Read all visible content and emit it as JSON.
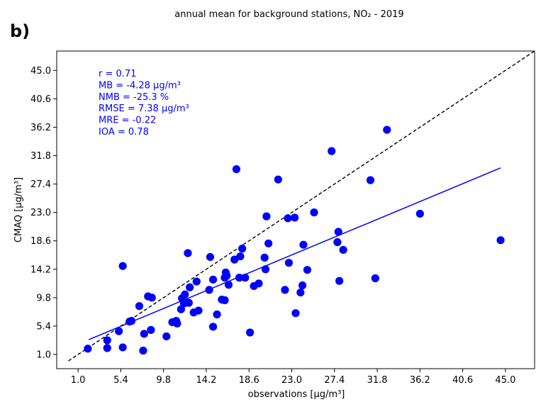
{
  "panel_label": "b)",
  "chart_data": {
    "type": "scatter",
    "title": "annual mean for background stations, NO₂ - 2019",
    "xlabel": "observations [μg/m³]",
    "ylabel": "CMAQ [μg/m³]",
    "xlim": [
      -1.2,
      48.0
    ],
    "ylim": [
      -1.2,
      48.0
    ],
    "xticks": [
      "1.0",
      "5.4",
      "9.8",
      "14.2",
      "18.6",
      "23.0",
      "27.4",
      "31.8",
      "36.2",
      "40.6",
      "45.0"
    ],
    "yticks": [
      "1.0",
      "5.4",
      "9.8",
      "14.2",
      "18.6",
      "23.0",
      "27.4",
      "31.8",
      "36.2",
      "40.6",
      "45.0"
    ],
    "tick_values": [
      1.0,
      5.4,
      9.8,
      14.2,
      18.6,
      23.0,
      27.4,
      31.8,
      36.2,
      40.6,
      45.0
    ],
    "grid": false,
    "point_color": "#0000ff",
    "identity_line": {
      "style": "dashed",
      "color": "#000000"
    },
    "regression_line": {
      "x": [
        2.1,
        44.5
      ],
      "y": [
        3.3,
        29.9
      ],
      "color": "#0000ff"
    },
    "stats": [
      "r = 0.71",
      "MB = -4.28 μg/m³",
      "NMB = -25.3 %",
      "RMSE = 7.38 μg/m³",
      "MRE = -0.22",
      "IOA = 0.78"
    ],
    "points": [
      [
        2.0,
        1.9
      ],
      [
        4.0,
        2.0
      ],
      [
        5.6,
        2.1
      ],
      [
        4.0,
        3.2
      ],
      [
        5.2,
        4.6
      ],
      [
        5.6,
        14.7
      ],
      [
        6.3,
        6.1
      ],
      [
        6.5,
        6.2
      ],
      [
        7.3,
        8.5
      ],
      [
        7.7,
        1.6
      ],
      [
        7.8,
        4.2
      ],
      [
        8.2,
        10.0
      ],
      [
        8.5,
        4.8
      ],
      [
        8.6,
        9.8
      ],
      [
        10.1,
        3.8
      ],
      [
        10.7,
        6.0
      ],
      [
        11.1,
        6.2
      ],
      [
        11.2,
        5.8
      ],
      [
        11.6,
        8.0
      ],
      [
        11.7,
        9.7
      ],
      [
        11.9,
        8.9
      ],
      [
        12.0,
        10.3
      ],
      [
        12.4,
        9.0
      ],
      [
        12.3,
        16.7
      ],
      [
        12.5,
        11.4
      ],
      [
        12.9,
        7.5
      ],
      [
        13.2,
        12.3
      ],
      [
        13.4,
        7.8
      ],
      [
        14.5,
        11.0
      ],
      [
        14.6,
        16.1
      ],
      [
        14.9,
        5.3
      ],
      [
        14.9,
        12.6
      ],
      [
        15.3,
        7.2
      ],
      [
        15.8,
        9.5
      ],
      [
        16.1,
        9.4
      ],
      [
        16.1,
        12.9
      ],
      [
        16.2,
        13.7
      ],
      [
        16.3,
        13.2
      ],
      [
        16.5,
        11.8
      ],
      [
        17.1,
        15.7
      ],
      [
        17.3,
        29.7
      ],
      [
        17.6,
        12.9
      ],
      [
        17.7,
        16.2
      ],
      [
        17.9,
        17.4
      ],
      [
        18.2,
        12.9
      ],
      [
        18.7,
        4.4
      ],
      [
        19.1,
        11.6
      ],
      [
        19.6,
        12.0
      ],
      [
        20.2,
        16.0
      ],
      [
        20.3,
        14.2
      ],
      [
        20.4,
        22.4
      ],
      [
        20.6,
        18.2
      ],
      [
        21.6,
        28.1
      ],
      [
        22.3,
        11.0
      ],
      [
        22.6,
        22.1
      ],
      [
        22.7,
        15.2
      ],
      [
        23.3,
        22.2
      ],
      [
        23.4,
        7.4
      ],
      [
        23.9,
        10.6
      ],
      [
        24.1,
        11.7
      ],
      [
        24.2,
        18.0
      ],
      [
        24.6,
        14.1
      ],
      [
        25.3,
        23.0
      ],
      [
        27.1,
        32.5
      ],
      [
        27.7,
        18.4
      ],
      [
        27.8,
        20.0
      ],
      [
        27.9,
        12.4
      ],
      [
        28.3,
        17.2
      ],
      [
        31.1,
        28.0
      ],
      [
        31.6,
        12.8
      ],
      [
        32.8,
        35.8
      ],
      [
        36.2,
        22.8
      ],
      [
        44.5,
        18.7
      ]
    ]
  }
}
